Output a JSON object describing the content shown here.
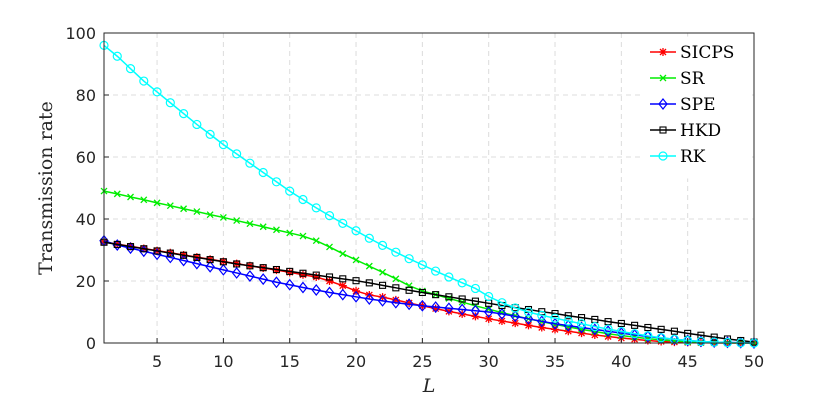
{
  "chart_data": {
    "type": "line",
    "title": "",
    "xlabel": "L",
    "ylabel": "Transmission rate",
    "xlim": [
      1,
      50
    ],
    "ylim": [
      0,
      100
    ],
    "xticks": [
      5,
      10,
      15,
      20,
      25,
      30,
      35,
      40,
      45,
      50
    ],
    "yticks": [
      0,
      20,
      40,
      60,
      80,
      100
    ],
    "grid": true,
    "legend_position": "top-right",
    "x": [
      1,
      2,
      3,
      4,
      5,
      6,
      7,
      8,
      9,
      10,
      11,
      12,
      13,
      14,
      15,
      16,
      17,
      18,
      19,
      20,
      21,
      22,
      23,
      24,
      25,
      26,
      27,
      28,
      29,
      30,
      31,
      32,
      33,
      34,
      35,
      36,
      37,
      38,
      39,
      40,
      41,
      42,
      43,
      44,
      45,
      46,
      47,
      48,
      49,
      50
    ],
    "series": [
      {
        "name": "SICPS",
        "color": "#ff0000",
        "marker": "star",
        "values": [
          32.6,
          31.9,
          31.2,
          30.5,
          29.8,
          29.1,
          28.4,
          27.7,
          27.0,
          26.3,
          25.6,
          24.9,
          24.2,
          23.5,
          22.8,
          22.0,
          21.3,
          20.0,
          18.5,
          16.8,
          15.5,
          14.8,
          13.9,
          12.9,
          12.0,
          11.1,
          10.2,
          9.4,
          8.6,
          7.8,
          7.1,
          6.4,
          5.7,
          5.0,
          4.4,
          3.8,
          3.2,
          2.6,
          2.1,
          1.6,
          1.2,
          0.8,
          0.5,
          0.3,
          0.2,
          0.1,
          0.05,
          0.02,
          0.01,
          0.0
        ]
      },
      {
        "name": "SR",
        "color": "#00ee00",
        "marker": "x",
        "values": [
          49.0,
          48.1,
          47.1,
          46.2,
          45.2,
          44.3,
          43.3,
          42.4,
          41.4,
          40.5,
          39.5,
          38.5,
          37.5,
          36.5,
          35.5,
          34.5,
          33.0,
          31.0,
          28.8,
          26.8,
          24.8,
          22.8,
          20.7,
          18.5,
          16.8,
          15.6,
          14.4,
          13.2,
          12.0,
          10.9,
          9.8,
          8.8,
          7.8,
          6.9,
          6.0,
          5.2,
          4.4,
          3.7,
          3.0,
          2.4,
          1.9,
          1.4,
          1.0,
          0.7,
          0.4,
          0.2,
          0.1,
          0.05,
          0.02,
          0.0
        ]
      },
      {
        "name": "SPE",
        "color": "#0000ff",
        "marker": "diamond",
        "values": [
          33.0,
          31.6,
          30.6,
          29.6,
          28.6,
          27.6,
          26.6,
          25.6,
          24.6,
          23.6,
          22.6,
          21.6,
          20.6,
          19.6,
          18.8,
          17.9,
          17.1,
          16.3,
          15.6,
          14.9,
          14.2,
          13.6,
          13.0,
          12.5,
          12.0,
          11.6,
          11.2,
          10.8,
          10.4,
          10.0,
          9.4,
          8.6,
          7.8,
          7.0,
          6.2,
          5.6,
          5.0,
          4.4,
          3.8,
          3.2,
          2.6,
          2.1,
          1.6,
          1.2,
          0.8,
          0.5,
          0.3,
          0.2,
          0.1,
          0.0
        ]
      },
      {
        "name": "HKD",
        "color": "#000000",
        "marker": "square",
        "values": [
          32.5,
          31.8,
          31.1,
          30.4,
          29.7,
          29.0,
          28.3,
          27.6,
          26.9,
          26.2,
          25.5,
          24.9,
          24.3,
          23.7,
          23.1,
          22.5,
          21.9,
          21.3,
          20.7,
          20.1,
          19.4,
          18.6,
          17.8,
          17.0,
          16.3,
          15.6,
          14.9,
          14.2,
          13.5,
          12.8,
          12.1,
          11.4,
          10.8,
          10.1,
          9.5,
          8.8,
          8.2,
          7.6,
          6.9,
          6.3,
          5.7,
          5.0,
          4.4,
          3.8,
          3.1,
          2.5,
          1.9,
          1.3,
          0.8,
          0.3
        ]
      },
      {
        "name": "RK",
        "color": "#00ffff",
        "marker": "circle",
        "values": [
          96.0,
          92.5,
          88.5,
          84.5,
          81.0,
          77.5,
          74.0,
          70.5,
          67.3,
          64.0,
          61.0,
          58.0,
          55.0,
          52.0,
          49.0,
          46.3,
          43.6,
          41.1,
          38.6,
          36.2,
          33.8,
          31.5,
          29.3,
          27.2,
          25.2,
          23.2,
          21.3,
          19.4,
          17.6,
          15.0,
          13.0,
          11.3,
          10.0,
          8.9,
          8.0,
          7.1,
          6.2,
          5.3,
          4.5,
          3.7,
          3.0,
          2.3,
          1.7,
          1.2,
          0.8,
          0.5,
          0.3,
          0.15,
          0.05,
          0.0
        ]
      }
    ]
  }
}
